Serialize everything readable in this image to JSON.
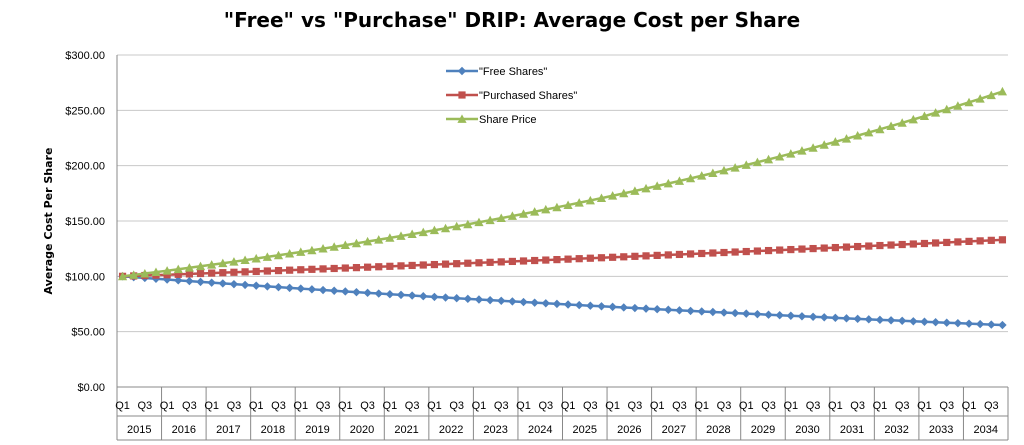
{
  "chart_data": {
    "type": "line",
    "title": "\"Free\" vs \"Purchase\" DRIP: Average Cost per Share",
    "ylabel": "Average Cost Per Share",
    "xlabel": "",
    "ylim": [
      0,
      300
    ],
    "y_ticks": [
      "$0.00",
      "$50.00",
      "$100.00",
      "$150.00",
      "$200.00",
      "$250.00",
      "$300.00"
    ],
    "quarter_labels": [
      "Q1",
      "Q3"
    ],
    "years": [
      "2015",
      "2016",
      "2017",
      "2018",
      "2019",
      "2020",
      "2021",
      "2022",
      "2023",
      "2024",
      "2025",
      "2026",
      "2027",
      "2028",
      "2029",
      "2030",
      "2031",
      "2032",
      "2033",
      "2034"
    ],
    "quarters_per_year": 4,
    "grid": "horizontal",
    "legend_position": "top-center",
    "series": [
      {
        "name": "\"Free Shares\"",
        "color": "#4F81BD",
        "marker": "diamond",
        "start": 100,
        "end": 56
      },
      {
        "name": "\"Purchased Shares\"",
        "color": "#C0504D",
        "marker": "square",
        "start": 100,
        "end": 133
      },
      {
        "name": "Share Price",
        "color": "#9BBB59",
        "marker": "triangle",
        "start": 100,
        "end": 267
      }
    ]
  }
}
